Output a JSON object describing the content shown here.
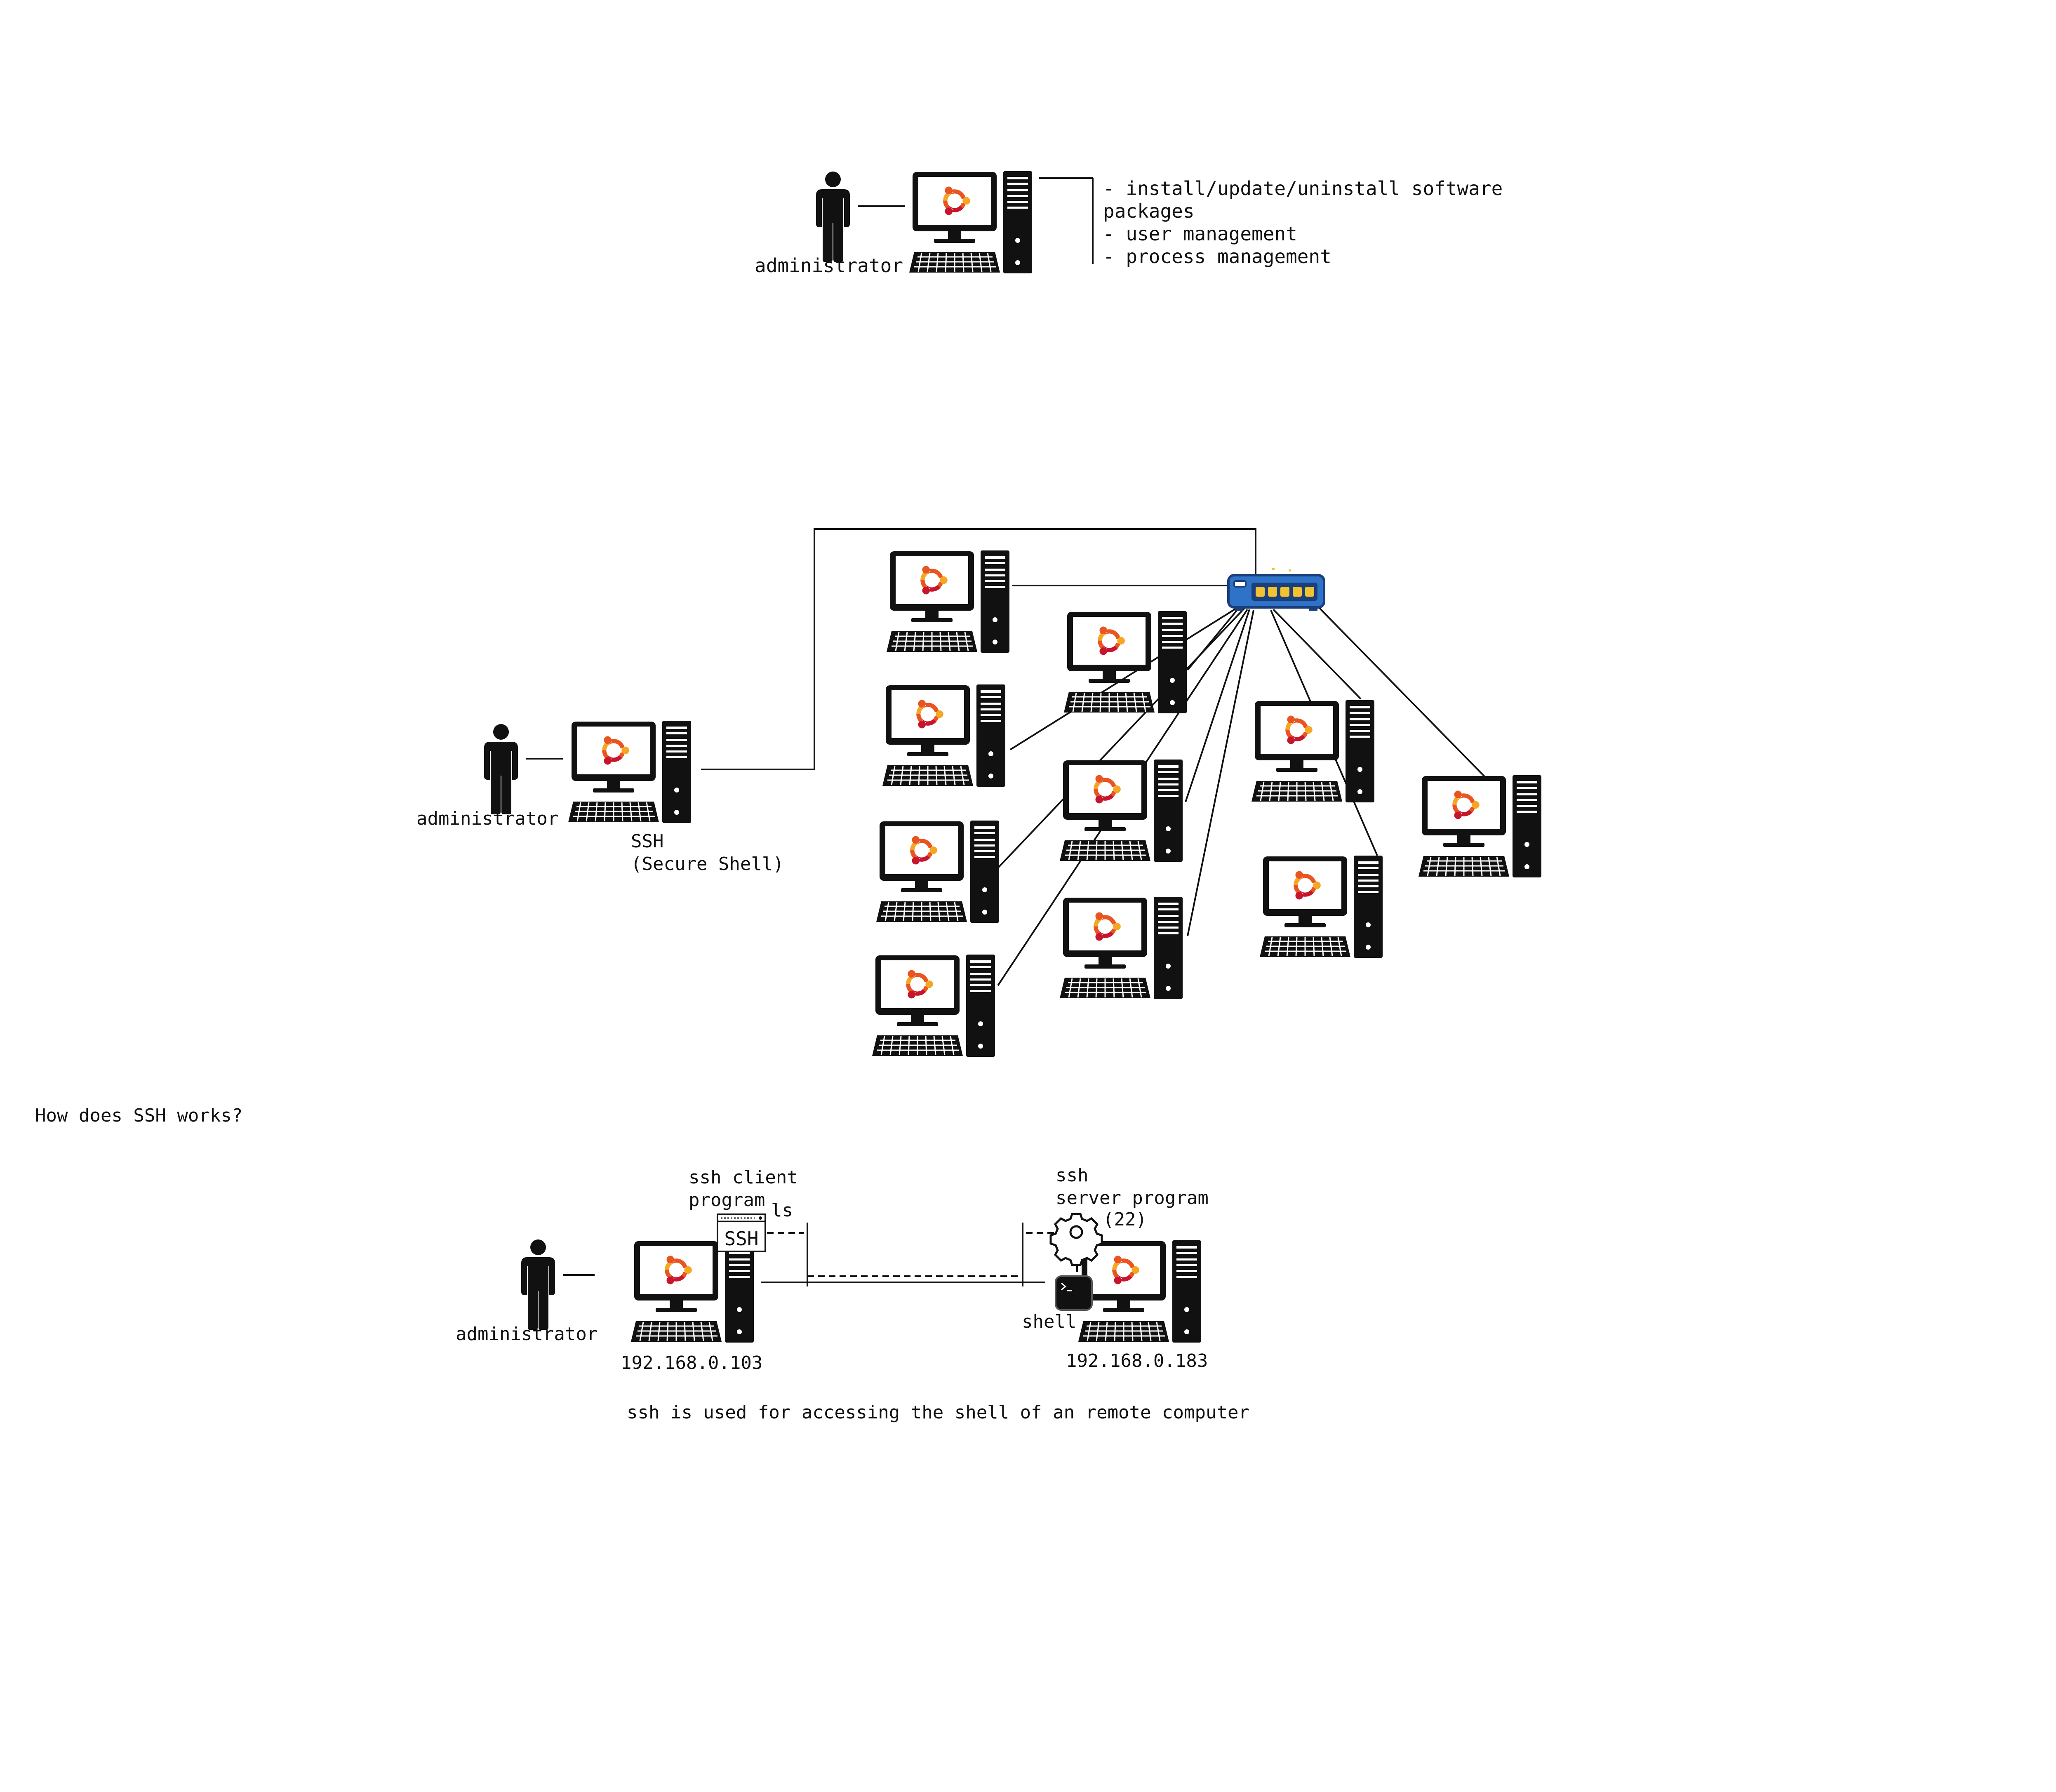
{
  "colors": {
    "line": "#111111",
    "ubuntu_orange": "#e95420",
    "ubuntu_red": "#c7162b",
    "ubuntu_yellow": "#f5a623",
    "switch_blue": "#2f73c9",
    "switch_dark": "#1b3f7a",
    "port_yellow": "#f2c230"
  },
  "section1": {
    "person_label": "administrator",
    "tasks": [
      "- install/update/uninstall software",
      "packages",
      "- user management",
      "- process management"
    ]
  },
  "section2": {
    "person_label": "administrator",
    "ssh_label": "SSH",
    "ssh_full": "(Secure Shell)",
    "network_icon": "network-switch-icon",
    "remote_computer_icon": "ubuntu-computer-icon"
  },
  "section3": {
    "question": "How does SSH works?",
    "person_label": "administrator",
    "client_label_line1": "ssh client",
    "client_label_line2": "program",
    "client_icon_text": "SSH",
    "command": "ls",
    "server_label_line1": "ssh",
    "server_label_line2": "server program",
    "port": "(22)",
    "shell_label": "shell",
    "client_ip": "192.168.0.103",
    "server_ip": "192.168.0.183",
    "caption": "ssh is used for accessing the shell of an remote computer"
  }
}
